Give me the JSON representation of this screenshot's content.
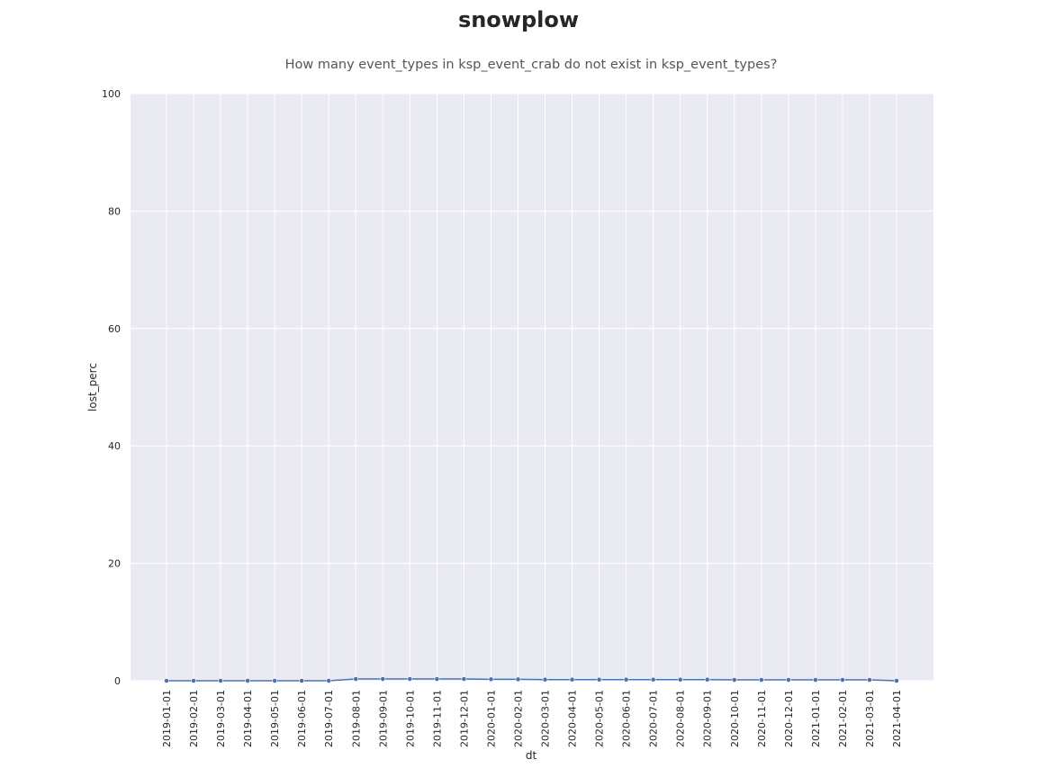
{
  "title": "snowplow",
  "subtitle": "How many event_types in ksp_event_crab do not exist in ksp_event_types?",
  "chart_data": {
    "type": "line",
    "title": "How many event_types in ksp_event_crab do not exist in ksp_event_types?",
    "xlabel": "dt",
    "ylabel": "lost_perc",
    "ylim": [
      0,
      100
    ],
    "yticks": [
      0,
      20,
      40,
      60,
      80,
      100
    ],
    "grid": true,
    "marker": "circle",
    "line_color": "#4c72b0",
    "background_color": "#eaeaf2",
    "x": [
      "2019-01-01",
      "2019-02-01",
      "2019-03-01",
      "2019-04-01",
      "2019-05-01",
      "2019-06-01",
      "2019-07-01",
      "2019-08-01",
      "2019-09-01",
      "2019-10-01",
      "2019-11-01",
      "2019-12-01",
      "2020-01-01",
      "2020-02-01",
      "2020-03-01",
      "2020-04-01",
      "2020-05-01",
      "2020-06-01",
      "2020-07-01",
      "2020-08-01",
      "2020-09-01",
      "2020-10-01",
      "2020-11-01",
      "2020-12-01",
      "2021-01-01",
      "2021-02-01",
      "2021-03-01",
      "2021-04-01"
    ],
    "values": [
      0.0,
      0.0,
      0.0,
      0.0,
      0.0,
      0.0,
      0.0,
      0.3,
      0.3,
      0.3,
      0.3,
      0.3,
      0.25,
      0.25,
      0.2,
      0.2,
      0.2,
      0.2,
      0.2,
      0.2,
      0.2,
      0.15,
      0.15,
      0.15,
      0.15,
      0.15,
      0.15,
      0.0
    ]
  }
}
